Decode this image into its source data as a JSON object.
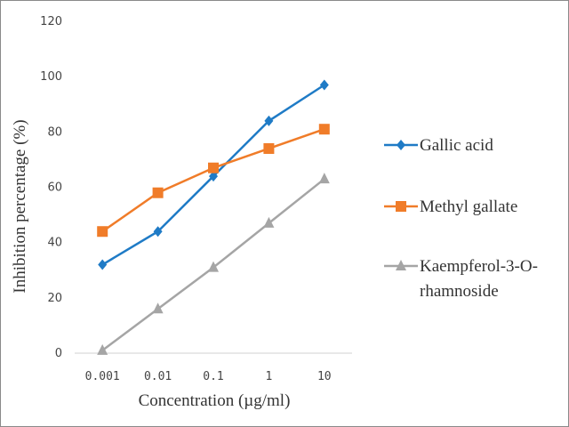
{
  "chart_data": {
    "type": "line",
    "title": "",
    "xlabel": "Concentration (µg/ml)",
    "ylabel": "Inhibition percentage  (%)",
    "categories": [
      "0.001",
      "0.01",
      "0.1",
      "1",
      "10"
    ],
    "ylim": [
      0,
      120
    ],
    "yticks": [
      "0",
      "20",
      "40",
      "60",
      "80",
      "100",
      "120"
    ],
    "grid": false,
    "legend_position": "right",
    "series": [
      {
        "name": "Gallic acid",
        "values": [
          32,
          44,
          64,
          84,
          97
        ],
        "color": "#1f7bc6",
        "marker": "diamond"
      },
      {
        "name": "Methyl gallate",
        "values": [
          44,
          58,
          67,
          74,
          81
        ],
        "color": "#f07c29",
        "marker": "square"
      },
      {
        "name": "Kaempferol-3-O-rhamnoside",
        "legend_lines": [
          "Kaempferol-3-O-",
          "rhamnoside"
        ],
        "values": [
          1,
          16,
          31,
          47,
          63
        ],
        "color": "#a5a5a5",
        "marker": "triangle"
      }
    ]
  }
}
